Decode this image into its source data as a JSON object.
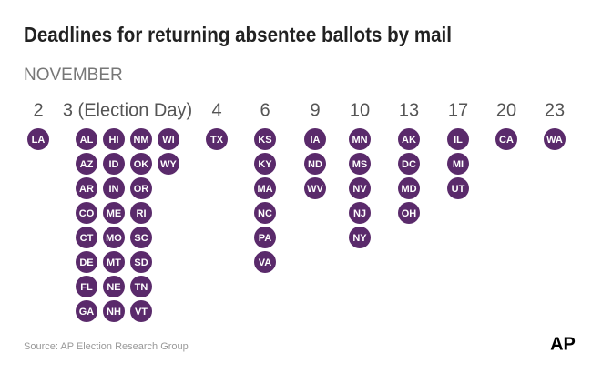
{
  "title": "Deadlines for returning absentee ballots by mail",
  "subtitle": "NOVEMBER",
  "days": [
    {
      "label": "2",
      "columns": [
        [
          "LA"
        ]
      ]
    },
    {
      "label": "3 (Election Day)",
      "columns": [
        [
          "AL",
          "AZ",
          "AR",
          "CO",
          "CT",
          "DE",
          "FL",
          "GA"
        ],
        [
          "HI",
          "ID",
          "IN",
          "ME",
          "MO",
          "MT",
          "NE",
          "NH"
        ],
        [
          "NM",
          "OK",
          "OR",
          "RI",
          "SC",
          "SD",
          "TN",
          "VT"
        ],
        [
          "WI",
          "WY"
        ]
      ]
    },
    {
      "label": "4",
      "columns": [
        [
          "TX"
        ]
      ]
    },
    {
      "label": "6",
      "columns": [
        [
          "KS",
          "KY",
          "MA",
          "NC",
          "PA",
          "VA"
        ]
      ]
    },
    {
      "label": "9",
      "columns": [
        [
          "IA",
          "ND",
          "WV"
        ]
      ]
    },
    {
      "label": "10",
      "columns": [
        [
          "MN",
          "MS",
          "NV",
          "NJ",
          "NY"
        ]
      ]
    },
    {
      "label": "13",
      "columns": [
        [
          "AK",
          "DC",
          "MD",
          "OH"
        ]
      ]
    },
    {
      "label": "17",
      "columns": [
        [
          "IL",
          "MI",
          "UT"
        ]
      ]
    },
    {
      "label": "20",
      "columns": [
        [
          "CA"
        ]
      ]
    },
    {
      "label": "23",
      "columns": [
        [
          "WA"
        ]
      ]
    }
  ],
  "source": "Source: AP Election Research Group",
  "logo": "AP"
}
